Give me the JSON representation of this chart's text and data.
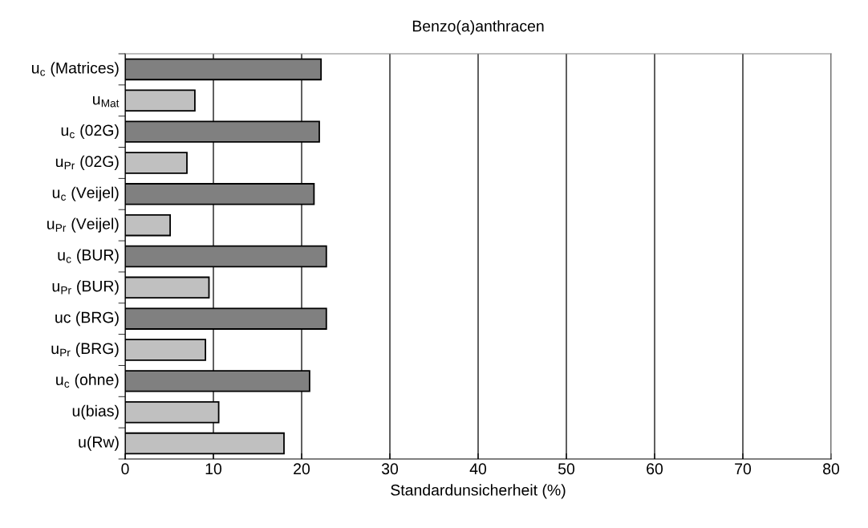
{
  "chart_data": {
    "type": "bar",
    "orientation": "horizontal",
    "title": "Benzo(a)anthracen",
    "xlabel": "Standardunsicherheit (%)",
    "categories": [
      "u$_{c}$ (Matrices)",
      "u$_{Mat}$",
      "u$_{c}$ (02G)",
      "u$_{Pr}$ (02G)",
      "u$_{c}$ (Veijel)",
      "u$_{Pr}$ (Veijel)",
      "u$_{c}$ (BUR)",
      "u$_{Pr}$ (BUR)",
      "uc (BRG)",
      "u$_{Pr}$ (BRG)",
      "u$_{c}$ (ohne)",
      "u(bias)",
      "u(Rw)"
    ],
    "values": [
      22.2,
      7.9,
      22.0,
      7.0,
      21.4,
      5.1,
      22.8,
      9.5,
      22.8,
      9.1,
      20.9,
      10.6,
      18.0
    ],
    "colors": [
      "#808080",
      "#c0c0c0",
      "#808080",
      "#c0c0c0",
      "#808080",
      "#c0c0c0",
      "#808080",
      "#c0c0c0",
      "#808080",
      "#c0c0c0",
      "#808080",
      "#c0c0c0",
      "#c0c0c0"
    ],
    "xlim": [
      0,
      80
    ],
    "xticks": [
      0,
      10,
      20,
      30,
      40,
      50,
      60,
      70,
      80
    ],
    "grid": "x",
    "legend": false
  }
}
